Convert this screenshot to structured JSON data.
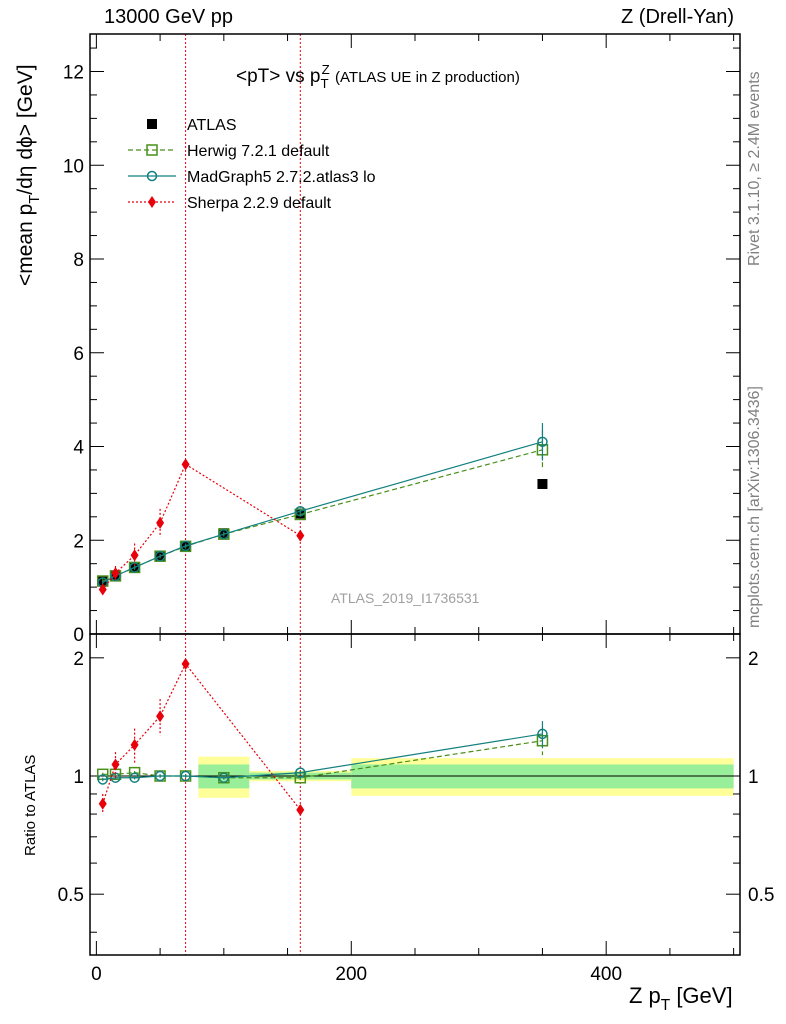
{
  "header": {
    "left": "13000 GeV pp",
    "right": "Z (Drell-Yan)"
  },
  "plot_title_main": "<pT> vs p",
  "plot_title_sub": "T",
  "plot_title_sup": "Z",
  "plot_title_tail": "(ATLAS UE in Z production)",
  "watermark": "ATLAS_2019_I1736531",
  "side_labels": {
    "rivet": "Rivet 3.1.10, ≥ 2.4M events",
    "mcplots": "mcplots.cern.ch [arXiv:1306.3436]"
  },
  "y_title_upper": {
    "a": "<mean p",
    "b": "T",
    "c": "/dη dϕ> [GeV]"
  },
  "y_title_lower": "Ratio to ATLAS",
  "x_title": {
    "a": "Z p",
    "b": "T",
    "c": " [GeV]"
  },
  "chart_data": [
    {
      "type": "scatter",
      "panel": "main",
      "xlim": [
        -5,
        505
      ],
      "ylim": [
        0,
        12.8
      ],
      "x_ticks": [
        0,
        200,
        400
      ],
      "y_ticks": [
        0,
        2,
        4,
        6,
        8,
        10,
        12
      ],
      "y_tick_labels": [
        "0",
        "2",
        "4",
        "6",
        "8",
        "10",
        "12"
      ],
      "legend_position": "top-left",
      "series": [
        {
          "name": "ATLAS",
          "color": "#000000",
          "marker": "filled-square",
          "x": [
            5,
            15,
            30,
            50,
            70,
            100,
            160,
            350
          ],
          "y": [
            1.12,
            1.25,
            1.42,
            1.66,
            1.88,
            2.15,
            2.57,
            3.2
          ]
        },
        {
          "name": "Herwig 7.2.1 default",
          "color": "#4a8f1a",
          "marker": "open-square",
          "line": "dashed",
          "x": [
            5,
            15,
            30,
            50,
            70,
            100,
            160,
            350
          ],
          "y": [
            1.13,
            1.24,
            1.42,
            1.66,
            1.87,
            2.13,
            2.55,
            3.93
          ],
          "err": [
            0.05,
            0.05,
            0.05,
            0.05,
            0.05,
            0.05,
            0.06,
            0.42
          ]
        },
        {
          "name": "MadGraph5 2.7.2.atlas3 lo",
          "color": "#13807f",
          "marker": "open-circle",
          "line": "solid",
          "x": [
            5,
            15,
            30,
            50,
            70,
            100,
            160,
            350
          ],
          "y": [
            1.1,
            1.24,
            1.42,
            1.66,
            1.88,
            2.13,
            2.62,
            4.1
          ],
          "err": [
            0.04,
            0.04,
            0.04,
            0.04,
            0.05,
            0.05,
            0.06,
            0.4
          ]
        },
        {
          "name": "Sherpa 2.2.9 default",
          "color": "#e8000b",
          "marker": "filled-diamond",
          "line": "dotted",
          "x": [
            5,
            15,
            30,
            50,
            70,
            160
          ],
          "y": [
            0.95,
            1.3,
            1.68,
            2.37,
            3.62,
            2.1
          ],
          "err": [
            0.1,
            0.15,
            0.25,
            0.3,
            0.05,
            0.05
          ]
        }
      ],
      "vertical_lines_x": [
        70,
        160
      ]
    },
    {
      "type": "scatter",
      "panel": "ratio",
      "xlim": [
        -5,
        505
      ],
      "ylim": [
        0.35,
        2.3
      ],
      "y_scale": "log",
      "x_ticks": [
        0,
        200,
        400
      ],
      "x_tick_labels": [
        "0",
        "200",
        "400"
      ],
      "y_tick_labels": [
        "0.5",
        "1",
        "2"
      ],
      "y_ticks": [
        0.5,
        1,
        2
      ],
      "reference_bands": [
        {
          "x": [
            80,
            120
          ],
          "inner": [
            0.93,
            1.07
          ],
          "outer": [
            0.88,
            1.12
          ]
        },
        {
          "x": [
            120,
            200
          ],
          "inner": [
            0.98,
            1.02
          ],
          "outer": [
            0.97,
            1.03
          ]
        },
        {
          "x": [
            200,
            500
          ],
          "inner": [
            0.93,
            1.07
          ],
          "outer": [
            0.89,
            1.11
          ]
        }
      ],
      "series": [
        {
          "name": "Herwig 7.2.1 default",
          "x": [
            5,
            15,
            30,
            50,
            70,
            100,
            160,
            350
          ],
          "y": [
            1.01,
            1.01,
            1.02,
            1.0,
            1.0,
            0.99,
            0.99,
            1.23
          ],
          "err": [
            0.01,
            0.01,
            0.01,
            0.01,
            0.01,
            0.01,
            0.01,
            0.1
          ]
        },
        {
          "name": "MadGraph5 2.7.2.atlas3 lo",
          "x": [
            5,
            15,
            30,
            50,
            70,
            100,
            160,
            350
          ],
          "y": [
            0.98,
            0.99,
            0.99,
            1.0,
            1.0,
            0.99,
            1.02,
            1.28
          ],
          "err": [
            0.01,
            0.01,
            0.01,
            0.01,
            0.01,
            0.01,
            0.01,
            0.1
          ]
        },
        {
          "name": "Sherpa 2.2.9 default",
          "x": [
            5,
            15,
            30,
            50,
            70,
            160
          ],
          "y": [
            0.85,
            1.07,
            1.2,
            1.42,
            1.93,
            0.82
          ],
          "err": [
            0.05,
            0.08,
            0.12,
            0.15,
            0.01,
            0.01
          ]
        }
      ]
    }
  ]
}
